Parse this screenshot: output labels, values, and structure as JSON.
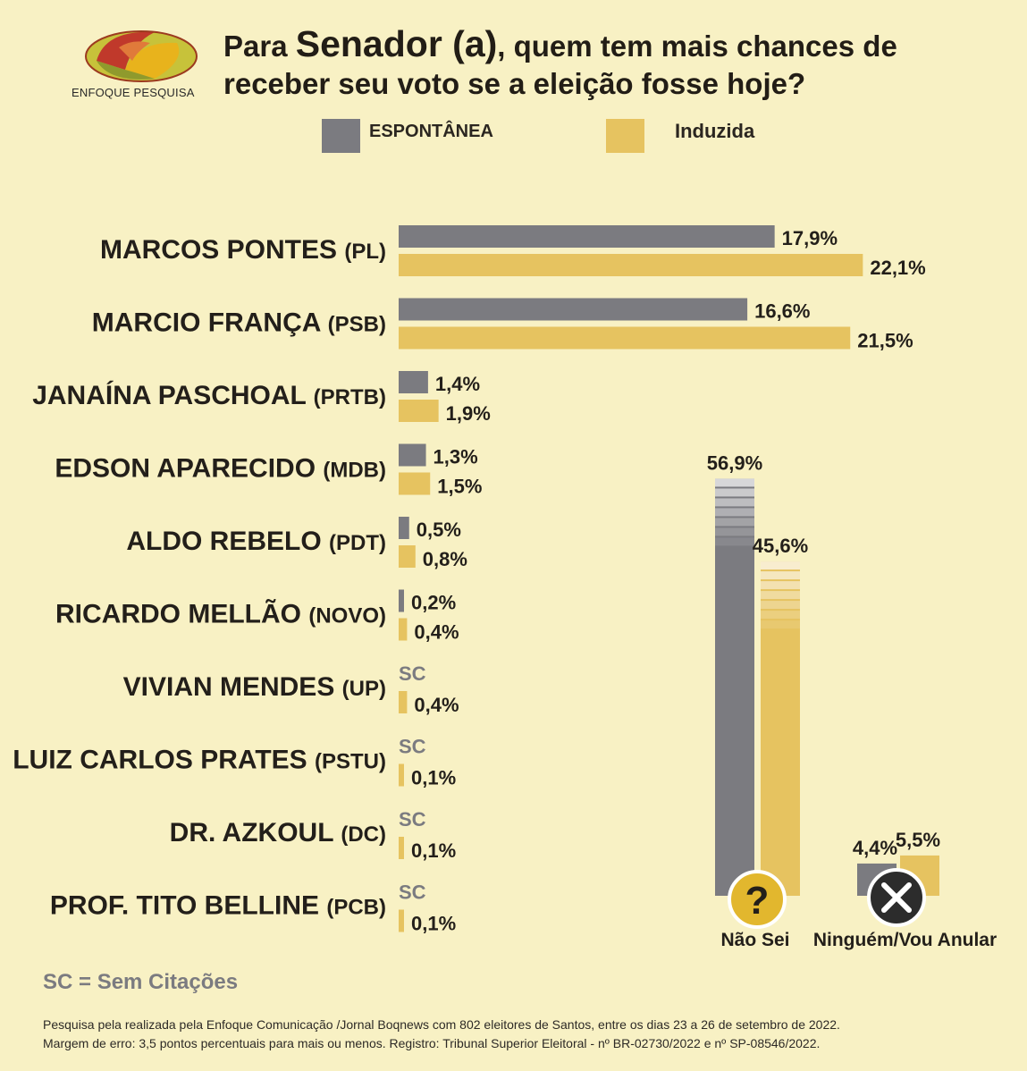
{
  "logo": {
    "icon": "enfoque-pesquisa-logo-icon",
    "text": "ENFOQUE PESQUISA"
  },
  "title": {
    "prefix": "Para ",
    "emphasis": "Senador (a)",
    "suffix": ", quem tem mais chances de",
    "line2": "receber seu voto se a eleição fosse hoje?"
  },
  "legend": [
    {
      "label": "ESPONTÂNEA",
      "color": "#7b7b80"
    },
    {
      "label": "Induzida",
      "color": "#e6c360"
    }
  ],
  "colors": {
    "espontanea": "#7b7b80",
    "induzida": "#e6c360",
    "background": "#f8f1c4"
  },
  "chart_data": [
    {
      "type": "bar",
      "orientation": "horizontal",
      "categories": [
        {
          "name": "MARCOS PONTES",
          "party": "(PL)"
        },
        {
          "name": "MARCIO FRANÇA",
          "party": "(PSB)"
        },
        {
          "name": "JANAÍNA PASCHOAL",
          "party": "(PRTB)"
        },
        {
          "name": "EDSON APARECIDO",
          "party": "(MDB)"
        },
        {
          "name": "ALDO REBELO",
          "party": "(PDT)"
        },
        {
          "name": "RICARDO MELLÃO",
          "party": "(NOVO)"
        },
        {
          "name": "VIVIAN MENDES",
          "party": "(UP)"
        },
        {
          "name": "LUIZ CARLOS PRATES",
          "party": "(PSTU)"
        },
        {
          "name": "DR. AZKOUL",
          "party": "(DC)"
        },
        {
          "name": "PROF. TITO BELLINE",
          "party": "(PCB)"
        }
      ],
      "series": [
        {
          "name": "ESPONTÂNEA",
          "values": [
            17.9,
            16.6,
            1.4,
            1.3,
            0.5,
            0.2,
            null,
            null,
            null,
            null
          ],
          "labels": [
            "17,9%",
            "16,6%",
            "1,4%",
            "1,3%",
            "0,5%",
            "0,2%",
            "SC",
            "SC",
            "SC",
            "SC"
          ]
        },
        {
          "name": "Induzida",
          "values": [
            22.1,
            21.5,
            1.9,
            1.5,
            0.8,
            0.4,
            0.4,
            0.1,
            0.1,
            0.1
          ],
          "labels": [
            "22,1%",
            "21,5%",
            "1,9%",
            "1,5%",
            "0,8%",
            "0,4%",
            "0,4%",
            "0,1%",
            "0,1%",
            "0,1%"
          ]
        }
      ]
    },
    {
      "type": "bar",
      "orientation": "vertical",
      "categories": [
        {
          "name": "Não Sei",
          "icon": "question-mark-icon"
        },
        {
          "name": "Ninguém/Vou Anular",
          "icon": "x-mark-icon"
        }
      ],
      "series": [
        {
          "name": "ESPONTÂNEA",
          "values": [
            56.9,
            4.4
          ],
          "labels": [
            "56,9%",
            "4,4%"
          ]
        },
        {
          "name": "Induzida",
          "values": [
            45.6,
            5.5
          ],
          "labels": [
            "45,6%",
            "5,5%"
          ]
        }
      ]
    }
  ],
  "sc_note": "SC = Sem Citações",
  "footer": {
    "line1": "Pesquisa pela realizada pela Enfoque Comunicação /Jornal Boqnews com 802 eleitores de Santos, entre os dias 23 a 26 de setembro de 2022.",
    "line2": "Margem de erro: 3,5 pontos percentuais para mais ou menos. Registro: Tribunal Superior Eleitoral - nº BR-02730/2022 e nº SP-08546/2022."
  }
}
